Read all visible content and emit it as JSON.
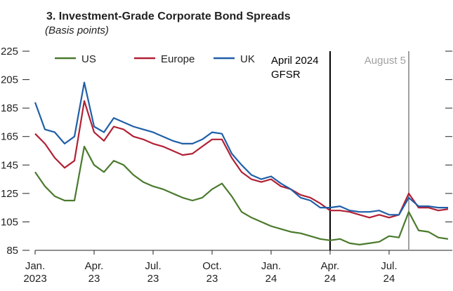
{
  "chart_data": {
    "type": "line",
    "title": "3. Investment-Grade Corporate Bond Spreads",
    "subtitle": "(Basis points)",
    "categories": [
      "Jan.\n2023",
      null,
      null,
      null,
      null,
      null,
      "Apr.\n23",
      null,
      null,
      null,
      null,
      null,
      "Jul.\n23",
      null,
      null,
      null,
      null,
      null,
      "Oct.\n23",
      null,
      null,
      null,
      null,
      null,
      "Jan.\n24",
      null,
      null,
      null,
      null,
      null,
      "Apr.\n24",
      null,
      null,
      null,
      null,
      null,
      "Jul.\n24",
      null,
      null,
      null,
      null,
      null,
      null
    ],
    "series": [
      {
        "name": "US",
        "color": "#4a7a2c",
        "values": [
          140,
          130,
          123,
          120,
          120,
          158,
          145,
          140,
          148,
          145,
          138,
          133,
          130,
          128,
          125,
          122,
          120,
          122,
          128,
          132,
          123,
          112,
          108,
          105,
          102,
          100,
          98,
          97,
          95,
          93,
          92,
          93,
          90,
          89,
          90,
          91,
          95,
          94,
          112,
          99,
          98,
          94,
          93
        ]
      },
      {
        "name": "Europe",
        "color": "#b22034",
        "values": [
          167,
          160,
          150,
          143,
          148,
          190,
          168,
          162,
          172,
          170,
          165,
          163,
          160,
          158,
          155,
          152,
          153,
          158,
          163,
          163,
          150,
          140,
          135,
          133,
          135,
          130,
          128,
          124,
          122,
          118,
          113,
          113,
          112,
          110,
          108,
          110,
          108,
          110,
          125,
          115,
          115,
          113,
          114
        ]
      },
      {
        "name": "UK",
        "color": "#1f5fa8",
        "values": [
          189,
          170,
          168,
          160,
          165,
          203,
          172,
          168,
          178,
          175,
          172,
          170,
          168,
          165,
          162,
          160,
          160,
          163,
          168,
          167,
          153,
          145,
          138,
          135,
          137,
          132,
          128,
          122,
          120,
          115,
          115,
          116,
          113,
          112,
          112,
          113,
          110,
          110,
          122,
          116,
          116,
          115,
          115
        ]
      }
    ],
    "ylim": [
      85,
      225
    ],
    "yticks": [
      85,
      105,
      125,
      145,
      165,
      185,
      205,
      225
    ],
    "annotations": [
      {
        "text": "April 2024\nGFSR",
        "x": 30,
        "color": "#000000"
      },
      {
        "text": "August 5",
        "x": 38,
        "color": "#a0a0a0"
      }
    ]
  }
}
